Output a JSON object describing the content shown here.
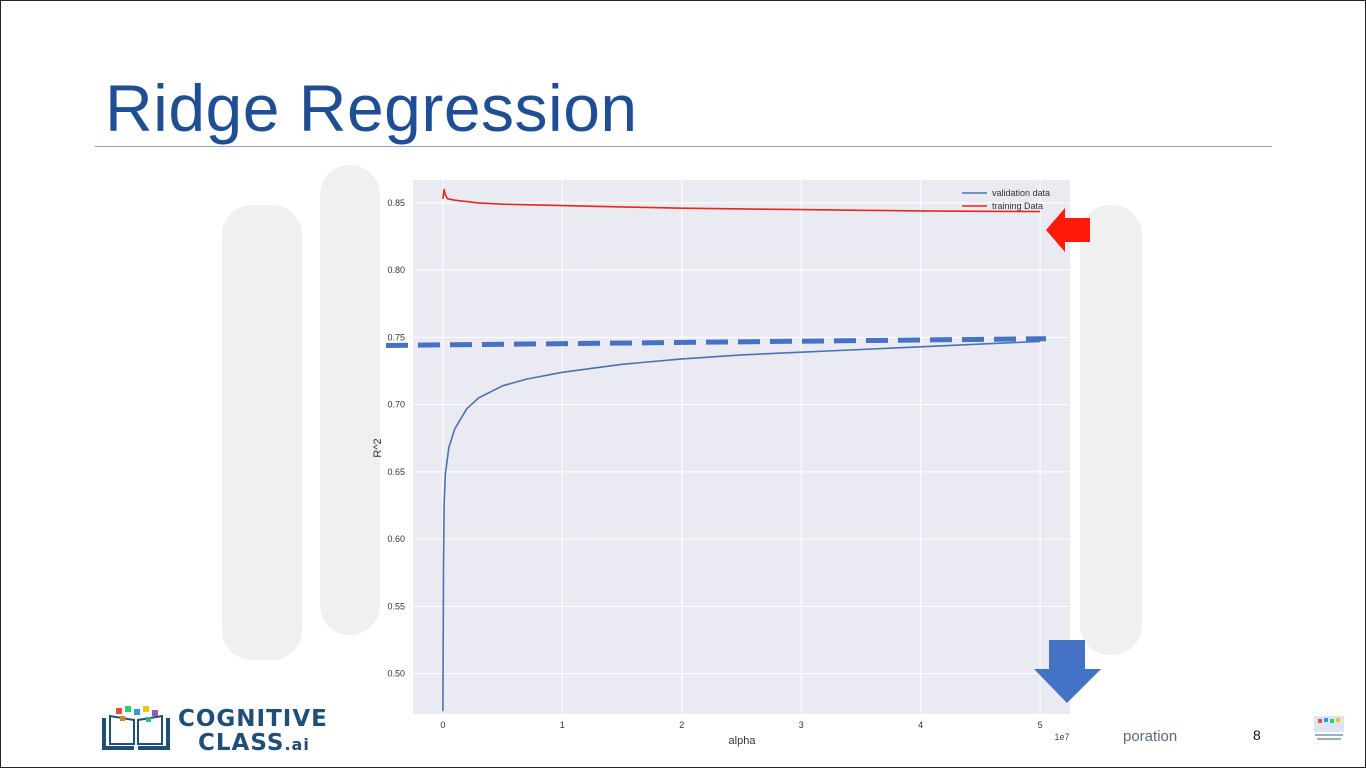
{
  "slide": {
    "title": "Ridge Regression",
    "footer_text": "poration",
    "page_number": "8"
  },
  "logo": {
    "line1": "COGNITIVE",
    "line2": "CLASS",
    "suffix": ".ai"
  },
  "colors": {
    "title": "#1f4e95",
    "validation": "#4c72b0",
    "training": "#e8281e",
    "plot_bg": "#eaeaf2",
    "arrow_red": "#ff1a0a",
    "arrow_blue": "#4472c4",
    "dashed": "#4472c4"
  },
  "chart_data": {
    "type": "line",
    "xlabel": "alpha",
    "ylabel": "R^2",
    "x_scale_label": "1e7",
    "xlim": [
      -0.25,
      5.25
    ],
    "ylim": [
      0.47,
      0.867
    ],
    "x_ticks": [
      0,
      1,
      2,
      3,
      4,
      5
    ],
    "y_ticks": [
      0.5,
      0.55,
      0.6,
      0.65,
      0.7,
      0.75,
      0.8,
      0.85
    ],
    "y_tick_labels": [
      "0.50",
      "0.55",
      "0.60",
      "0.65",
      "0.70",
      "0.75",
      "0.80",
      "0.85"
    ],
    "grid": true,
    "legend_position": "top-right",
    "series": [
      {
        "name": "validation data",
        "x": [
          0,
          0.005,
          0.01,
          0.02,
          0.05,
          0.1,
          0.2,
          0.3,
          0.5,
          0.7,
          1.0,
          1.5,
          2.0,
          2.5,
          3.0,
          3.5,
          4.0,
          4.5,
          5.0
        ],
        "y": [
          0.472,
          0.58,
          0.625,
          0.648,
          0.668,
          0.682,
          0.697,
          0.705,
          0.714,
          0.719,
          0.724,
          0.73,
          0.734,
          0.737,
          0.739,
          0.741,
          0.743,
          0.745,
          0.747
        ]
      },
      {
        "name": "training Data",
        "x": [
          0,
          0.01,
          0.02,
          0.04,
          0.1,
          0.3,
          0.5,
          1.0,
          1.5,
          2.0,
          2.5,
          3.0,
          3.5,
          4.0,
          4.5,
          5.0
        ],
        "y": [
          0.853,
          0.86,
          0.856,
          0.853,
          0.852,
          0.85,
          0.849,
          0.848,
          0.847,
          0.846,
          0.8455,
          0.845,
          0.8445,
          0.844,
          0.8437,
          0.8435
        ]
      }
    ],
    "annotations": {
      "dashed_reference_y": [
        0.744,
        0.749
      ],
      "red_arrow_points_at": "training Data",
      "blue_arrow_points": "down"
    }
  }
}
